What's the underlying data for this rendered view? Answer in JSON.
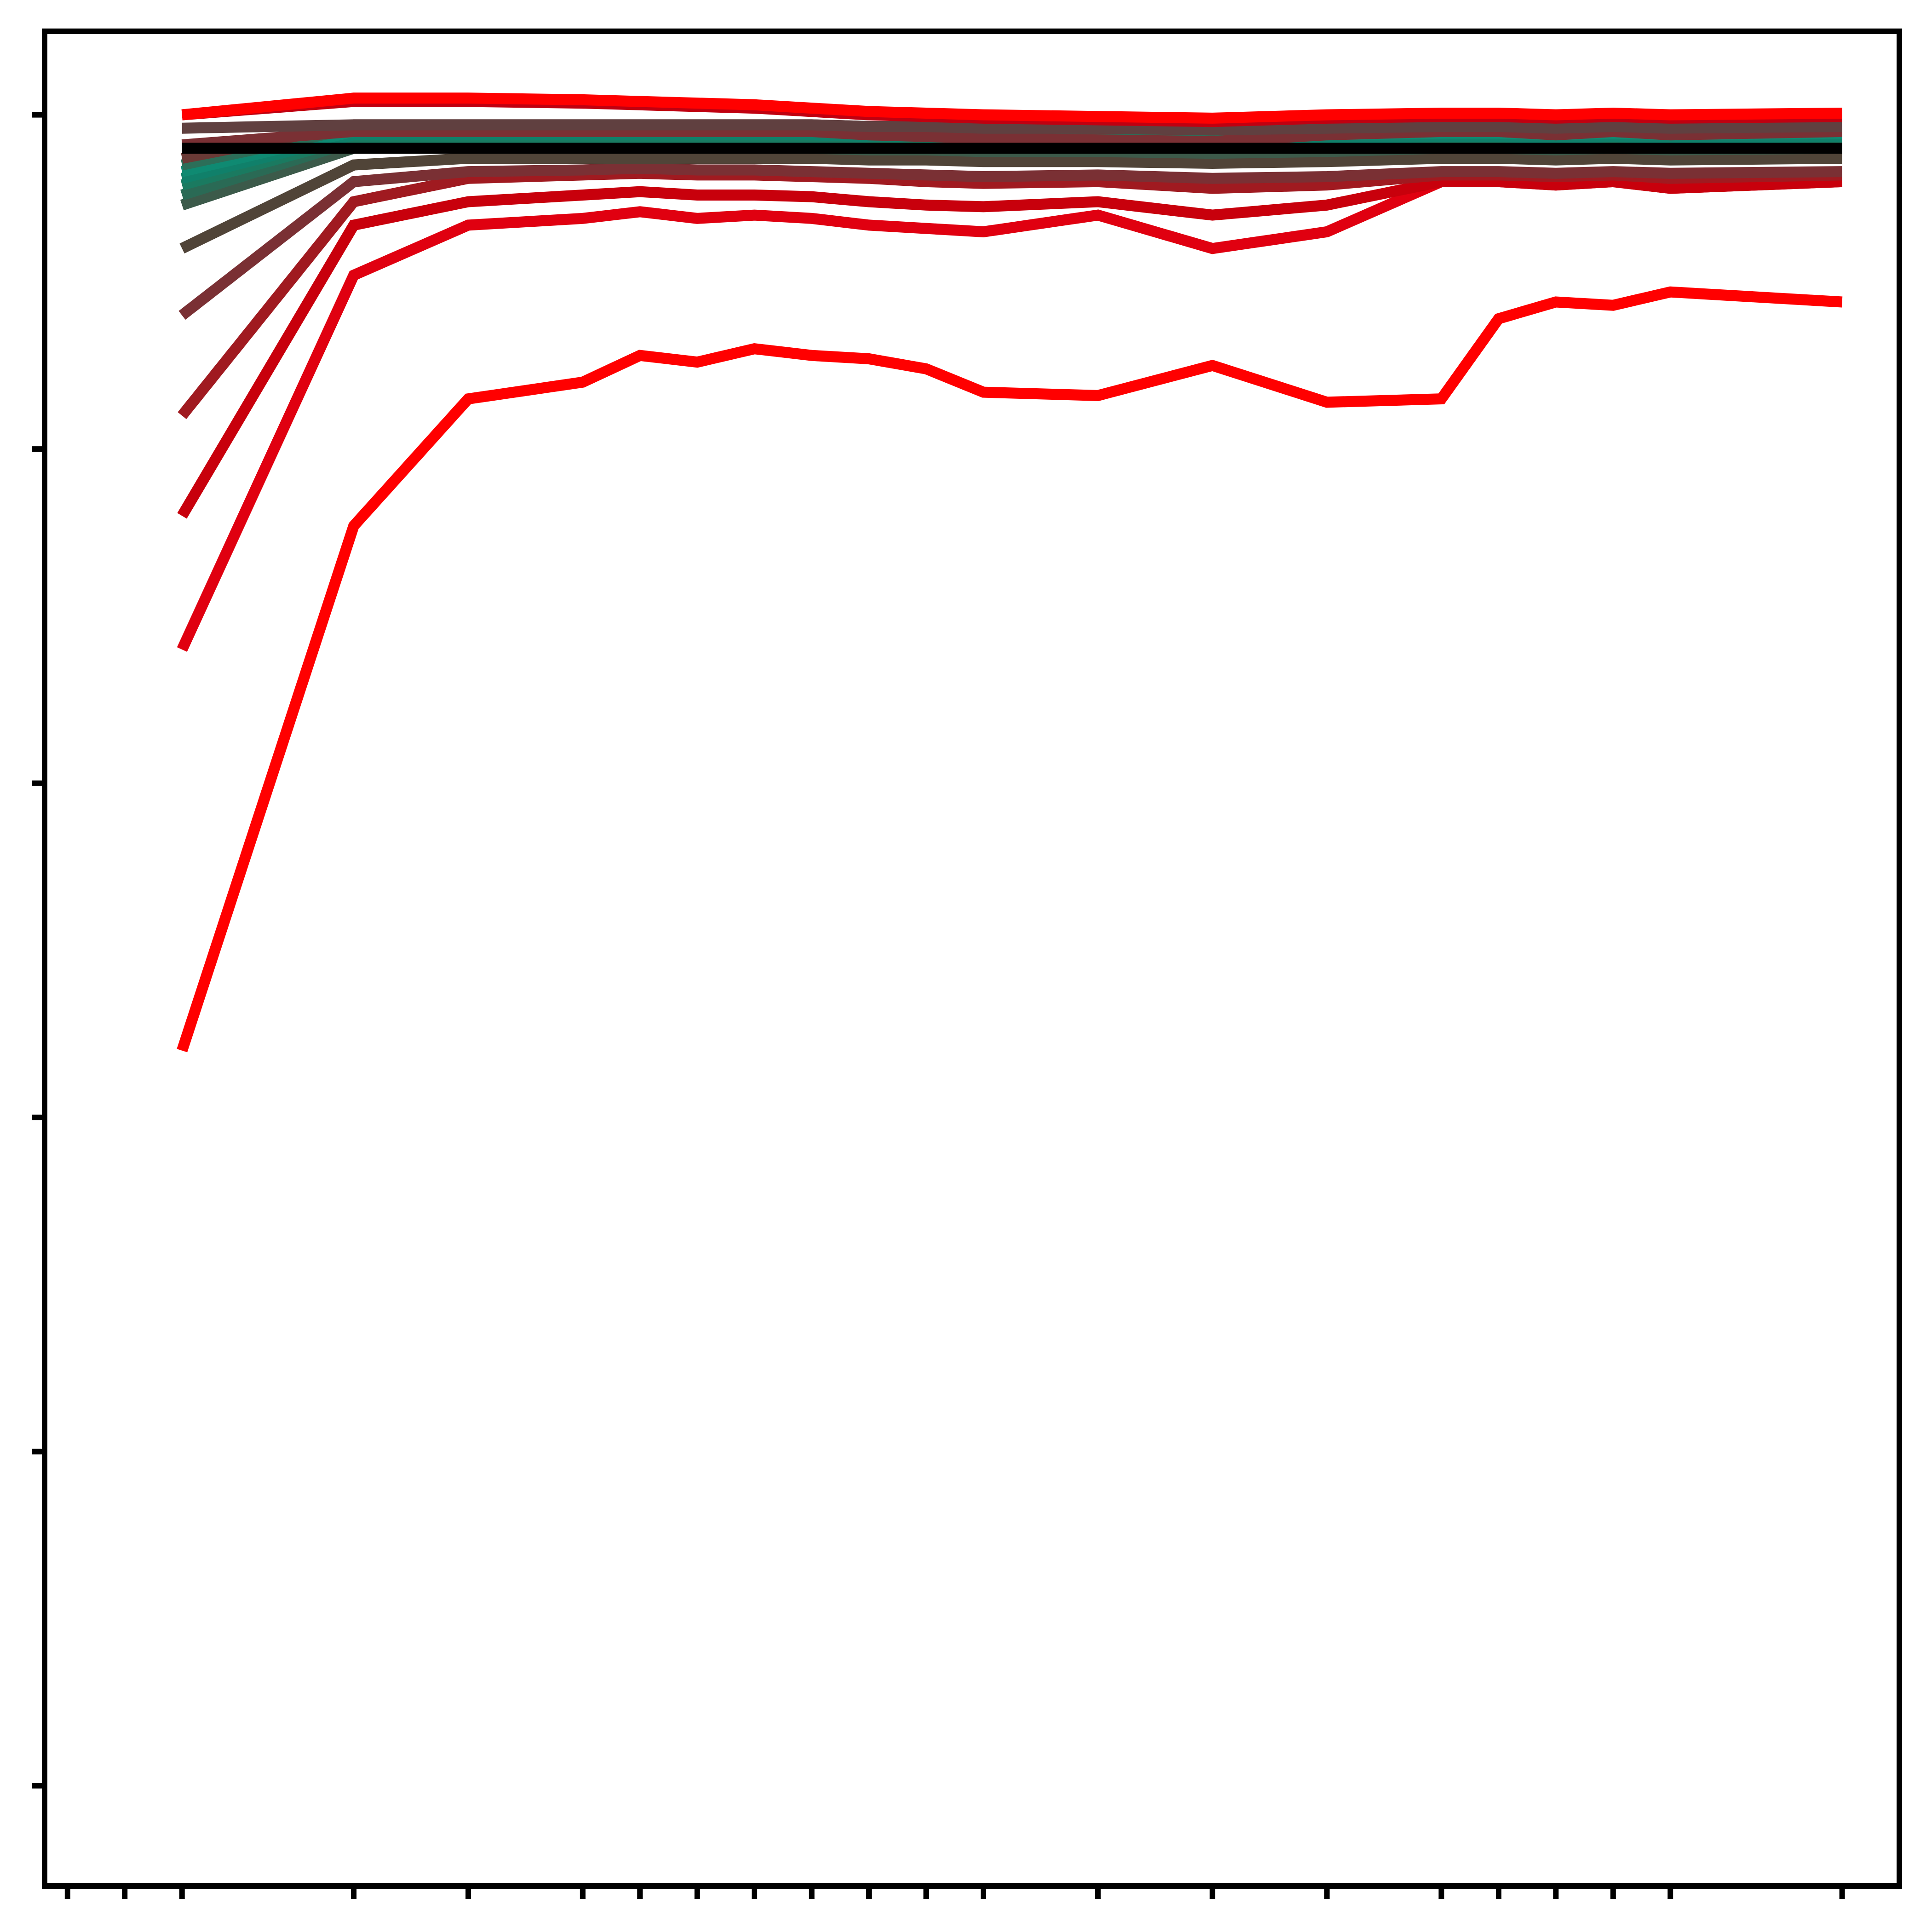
{
  "chart_data": {
    "type": "line",
    "title": "",
    "xlabel": "",
    "ylabel": "",
    "x_ticks": [
      1,
      2,
      3,
      6,
      8,
      10,
      11,
      12,
      13,
      14,
      15,
      16,
      17,
      19,
      21,
      23,
      25,
      26,
      27,
      28,
      29,
      32
    ],
    "y_ticks": [
      -5,
      -4,
      -3,
      -2,
      -1,
      0
    ],
    "xlim": [
      0.6,
      33
    ],
    "ylim": [
      -5.3,
      0.25
    ],
    "x": [
      3,
      6,
      8,
      10,
      11,
      12,
      13,
      14,
      15,
      16,
      17,
      19,
      21,
      23,
      25,
      26,
      27,
      28,
      29,
      32
    ],
    "grid": false,
    "legend": "none",
    "series": [
      {
        "color": "#ff0000",
        "values": [
          -2.8,
          -1.23,
          -0.85,
          -0.8,
          -0.72,
          -0.74,
          -0.7,
          -0.72,
          -0.73,
          -0.76,
          -0.83,
          -0.84,
          -0.75,
          -0.86,
          -0.85,
          -0.61,
          -0.56,
          -0.57,
          -0.53,
          -0.56
        ]
      },
      {
        "color": "#e00010",
        "values": [
          -1.6,
          -0.48,
          -0.33,
          -0.31,
          -0.29,
          -0.31,
          -0.3,
          -0.31,
          -0.33,
          -0.34,
          -0.35,
          -0.3,
          -0.4,
          -0.35,
          -0.2,
          -0.2,
          -0.21,
          -0.2,
          -0.22,
          -0.2
        ]
      },
      {
        "color": "#c8000c",
        "values": [
          -1.2,
          -0.33,
          -0.26,
          -0.24,
          -0.23,
          -0.24,
          -0.24,
          -0.245,
          -0.26,
          -0.27,
          -0.275,
          -0.26,
          -0.3,
          -0.27,
          -0.2,
          -0.2,
          -0.21,
          -0.2,
          -0.22,
          -0.2
        ]
      },
      {
        "color": "#a01a20",
        "values": [
          -0.9,
          -0.26,
          -0.19,
          -0.18,
          -0.175,
          -0.18,
          -0.18,
          -0.185,
          -0.19,
          -0.2,
          -0.205,
          -0.2,
          -0.22,
          -0.21,
          -0.18,
          -0.18,
          -0.185,
          -0.18,
          -0.19,
          -0.18
        ]
      },
      {
        "color": "#7a3034",
        "values": [
          -0.6,
          -0.2,
          -0.17,
          -0.165,
          -0.16,
          -0.165,
          -0.165,
          -0.17,
          -0.175,
          -0.18,
          -0.185,
          -0.18,
          -0.19,
          -0.185,
          -0.17,
          -0.17,
          -0.175,
          -0.17,
          -0.175,
          -0.17
        ]
      },
      {
        "color": "#504438",
        "values": [
          -0.4,
          -0.15,
          -0.13,
          -0.13,
          -0.13,
          -0.13,
          -0.13,
          -0.13,
          -0.135,
          -0.135,
          -0.14,
          -0.14,
          -0.145,
          -0.14,
          -0.13,
          -0.13,
          -0.135,
          -0.13,
          -0.135,
          -0.13
        ]
      },
      {
        "color": "#3c5a4a",
        "values": [
          -0.27,
          -0.1,
          -0.1,
          -0.1,
          -0.1,
          -0.1,
          -0.1,
          -0.1,
          -0.105,
          -0.105,
          -0.11,
          -0.11,
          -0.115,
          -0.11,
          -0.1,
          -0.1,
          -0.105,
          -0.1,
          -0.105,
          -0.1
        ]
      },
      {
        "color": "#2a6a55",
        "values": [
          -0.24,
          -0.08,
          -0.08,
          -0.08,
          -0.08,
          -0.08,
          -0.08,
          -0.08,
          -0.085,
          -0.085,
          -0.09,
          -0.09,
          -0.095,
          -0.09,
          -0.085,
          -0.085,
          -0.09,
          -0.085,
          -0.09,
          -0.085
        ]
      },
      {
        "color": "#1a7a60",
        "values": [
          -0.21,
          -0.07,
          -0.07,
          -0.07,
          -0.07,
          -0.07,
          -0.07,
          -0.07,
          -0.075,
          -0.075,
          -0.08,
          -0.08,
          -0.085,
          -0.08,
          -0.075,
          -0.075,
          -0.08,
          -0.075,
          -0.08,
          -0.075
        ]
      },
      {
        "color": "#10806a",
        "values": [
          -0.19,
          -0.06,
          -0.06,
          -0.06,
          -0.06,
          -0.06,
          -0.06,
          -0.06,
          -0.065,
          -0.065,
          -0.07,
          -0.07,
          -0.075,
          -0.07,
          -0.065,
          -0.065,
          -0.07,
          -0.065,
          -0.07,
          -0.065
        ]
      },
      {
        "color": "#0f8a72",
        "values": [
          -0.17,
          -0.05,
          -0.05,
          -0.05,
          -0.05,
          -0.05,
          -0.05,
          -0.05,
          -0.055,
          -0.055,
          -0.06,
          -0.06,
          -0.065,
          -0.06,
          -0.055,
          -0.055,
          -0.06,
          -0.055,
          -0.06,
          -0.055
        ]
      },
      {
        "color": "#2c6e58",
        "values": [
          -0.15,
          -0.04,
          -0.04,
          -0.04,
          -0.04,
          -0.04,
          -0.04,
          -0.04,
          -0.045,
          -0.045,
          -0.05,
          -0.05,
          -0.055,
          -0.05,
          -0.045,
          -0.045,
          -0.05,
          -0.045,
          -0.05,
          -0.045
        ]
      },
      {
        "color": "#6a3a36",
        "values": [
          -0.13,
          -0.03,
          -0.03,
          -0.03,
          -0.03,
          -0.03,
          -0.03,
          -0.03,
          -0.035,
          -0.035,
          -0.04,
          -0.04,
          -0.045,
          -0.04,
          -0.035,
          -0.035,
          -0.04,
          -0.035,
          -0.04,
          -0.035
        ]
      },
      {
        "color": "#7a3034",
        "values": [
          -0.09,
          -0.05,
          -0.05,
          -0.05,
          -0.05,
          -0.05,
          -0.05,
          -0.05,
          -0.06,
          -0.065,
          -0.07,
          -0.075,
          -0.08,
          -0.06,
          -0.05,
          -0.05,
          -0.06,
          -0.05,
          -0.06,
          -0.05
        ]
      },
      {
        "color": "#604040",
        "values": [
          -0.04,
          -0.03,
          -0.03,
          -0.03,
          -0.03,
          -0.03,
          -0.03,
          -0.03,
          -0.035,
          -0.035,
          -0.04,
          -0.04,
          -0.045,
          -0.04,
          -0.035,
          -0.035,
          -0.04,
          -0.035,
          -0.04,
          -0.035
        ]
      },
      {
        "color": "#c00010",
        "values": [
          0.0,
          0.04,
          0.04,
          0.035,
          0.03,
          0.025,
          0.02,
          0.01,
          0.0,
          -0.005,
          -0.01,
          -0.015,
          -0.02,
          -0.01,
          -0.005,
          -0.005,
          -0.01,
          -0.005,
          -0.01,
          -0.005
        ]
      },
      {
        "color": "#ff0000",
        "values": [
          0.0,
          0.05,
          0.05,
          0.045,
          0.04,
          0.035,
          0.03,
          0.02,
          0.01,
          0.005,
          0.0,
          -0.005,
          -0.01,
          0.0,
          0.005,
          0.005,
          0.0,
          0.005,
          0.0,
          0.005
        ]
      },
      {
        "color": "#000000",
        "values": [
          -0.1,
          -0.1,
          -0.1,
          -0.1,
          -0.1,
          -0.1,
          -0.1,
          -0.1,
          -0.1,
          -0.1,
          -0.1,
          -0.1,
          -0.1,
          -0.1,
          -0.1,
          -0.1,
          -0.1,
          -0.1,
          -0.1,
          -0.1
        ]
      }
    ]
  }
}
